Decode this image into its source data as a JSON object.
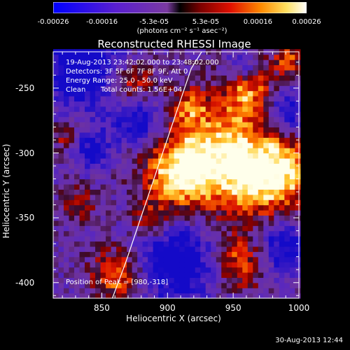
{
  "chart_data": {
    "type": "heatmap",
    "title": "Reconstructed RHESSI Image",
    "xlabel": "Heliocentric X (arcsec)",
    "ylabel": "Heliocentric Y (arcsec)",
    "xlim": [
      813,
      1000
    ],
    "ylim": [
      -412,
      -222
    ],
    "x_ticks": [
      "850",
      "900",
      "950",
      "1000"
    ],
    "x_tick_values": [
      850,
      900,
      950,
      1000
    ],
    "y_ticks": [
      "-250",
      "-300",
      "-350",
      "-400"
    ],
    "y_tick_values": [
      -250,
      -300,
      -350,
      -400
    ],
    "colorbar": {
      "ticks": [
        "-0.00026",
        "-0.00016",
        "-5.3e-05",
        "5.3e-05",
        "0.00016",
        "0.00026"
      ],
      "tick_values": [
        -0.00026,
        -0.00016,
        -5.3e-05,
        5.3e-05,
        0.00016,
        0.00026
      ],
      "range": [
        -0.00026,
        0.00026
      ],
      "units": "(photons cm⁻² s⁻¹ asec⁻²)"
    },
    "annotations": {
      "time_range": "19-Aug-2013 23:42:02.000 to 23:48:02.000",
      "detectors": "Detectors: 3F 5F 6F 7F 8F 9F, Att 0",
      "energy": "Energy Range: 25.0 - 50.0 keV",
      "algorithm": "Clean",
      "counts": "Total counts: 1.56E+04",
      "peak": "Position of Peak = [980,-318]"
    },
    "limb_curve": {
      "x": [
        858,
        868,
        878,
        888,
        898,
        908,
        918,
        926
      ],
      "y": [
        -412,
        -385,
        -355,
        -325,
        -295,
        -265,
        -235,
        -222
      ]
    },
    "peak_position": [
      980,
      -318
    ],
    "grid": false
  },
  "timestamp": "30-Aug-2013 12:44"
}
